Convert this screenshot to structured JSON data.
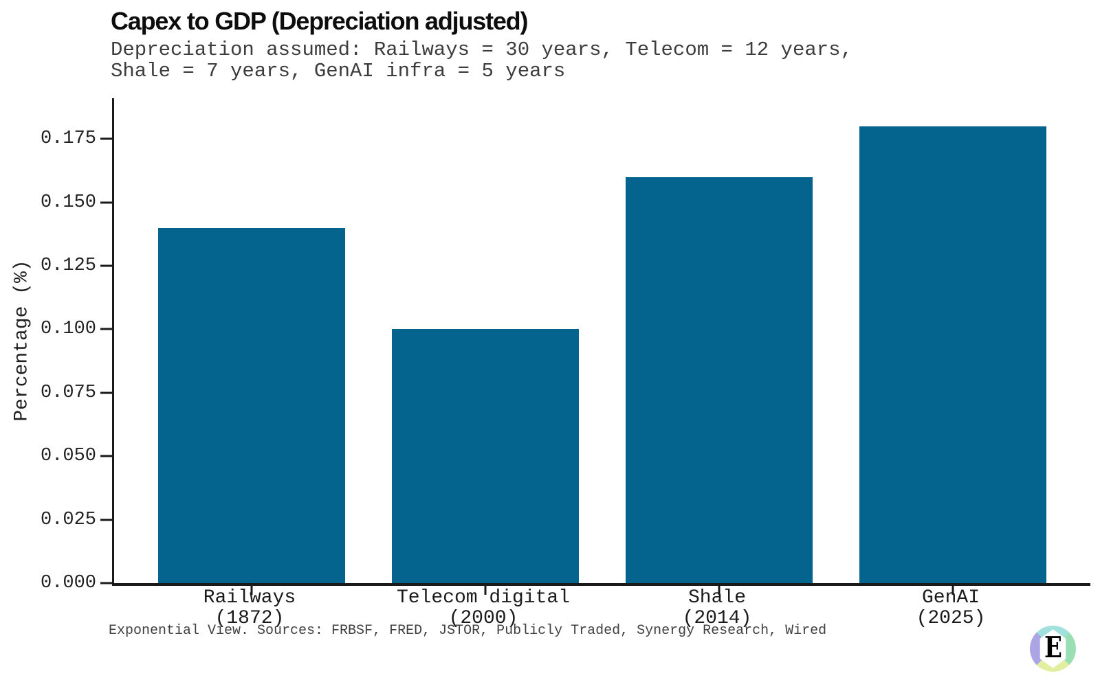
{
  "header": {
    "title": "Capex to GDP (Depreciation adjusted)",
    "subtitle": "Depreciation assumed: Railways = 30 years, Telecom = 12 years,\nShale = 7 years, GenAI infra = 5 years"
  },
  "chart_data": {
    "type": "bar",
    "title": "Capex to GDP (Depreciation adjusted)",
    "subtitle": "Depreciation assumed: Railways = 30 years, Telecom = 12 years, Shale = 7 years, GenAI infra = 5 years",
    "categories": [
      "Railways\n(1872)",
      "Telecom digital\n(2000)",
      "Shale\n(2014)",
      "GenAI\n(2025)"
    ],
    "values": [
      0.14,
      0.1,
      0.16,
      0.18
    ],
    "xlabel": "",
    "ylabel": "Percentage (%)",
    "ylim": [
      0,
      0.191
    ],
    "yticks": [
      0.0,
      0.025,
      0.05,
      0.075,
      0.1,
      0.125,
      0.15,
      0.175
    ],
    "ytick_labels": [
      "0.000",
      "0.025",
      "0.050",
      "0.075",
      "0.100",
      "0.125",
      "0.150",
      "0.175"
    ],
    "grid": false,
    "legend": null,
    "bar_color": "#05648e",
    "bar_fraction": 0.8
  },
  "footer": {
    "source_text": "Exponential View. Sources: FRBSF, FRED, JSTOR, Publicly Traded, Synergy Research, Wired",
    "logo": {
      "letter": "E",
      "colors": {
        "top": "#a2e0dd",
        "right": "#9adfb3",
        "bottom": "#e2efa0",
        "left": "#aba5e6"
      }
    }
  },
  "colors": {
    "background": "#ffffff",
    "axis": "#1a1a1a",
    "title_text": "#0d0d0d",
    "muted_text": "#3c3c3c"
  }
}
